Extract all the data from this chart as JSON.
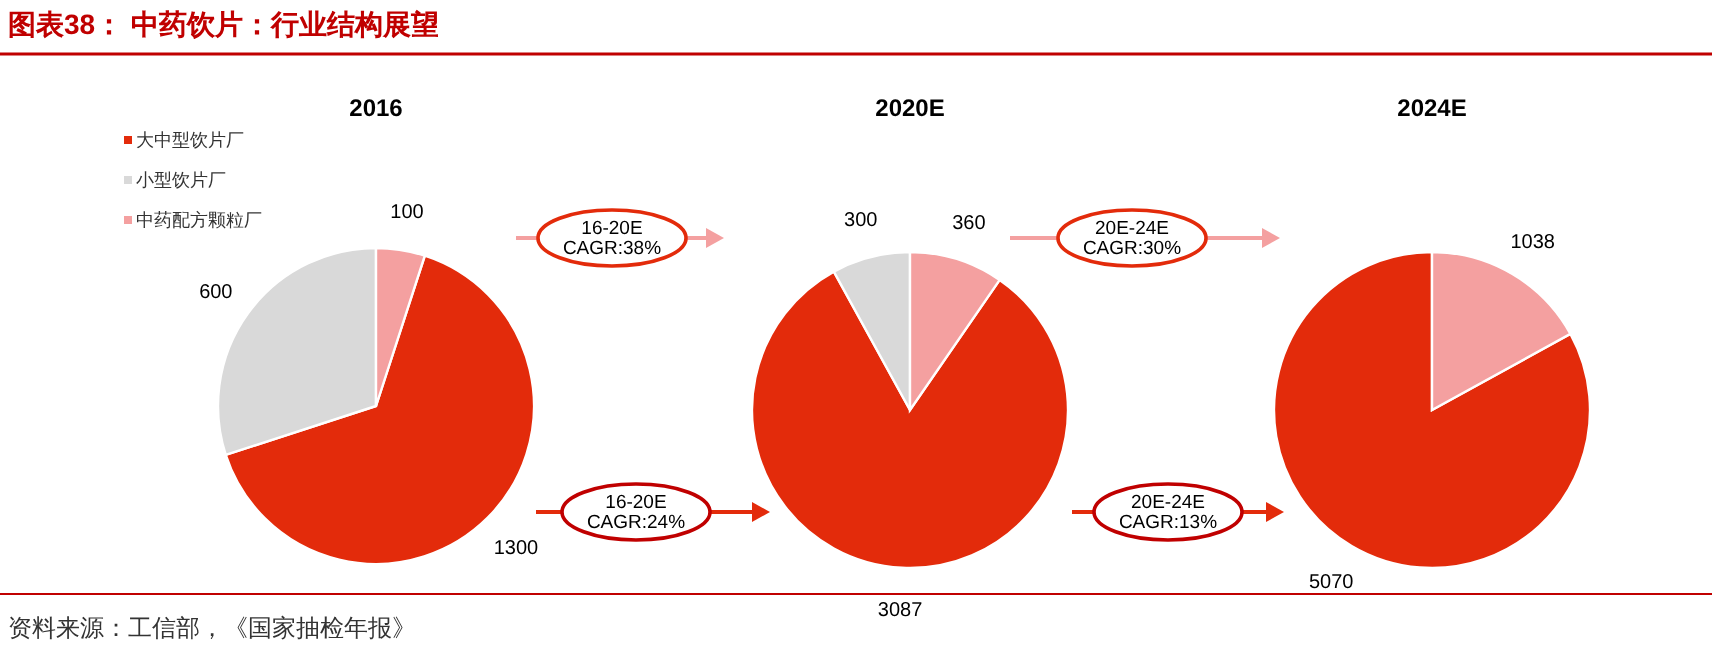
{
  "chart_data": [
    {
      "type": "pie",
      "title": "2016",
      "categories": [
        "大中型饮片厂",
        "小型饮片厂",
        "中药配方颗粒厂"
      ],
      "values": [
        1300,
        600,
        100
      ],
      "colors": [
        "#e32b0b",
        "#d9d9d9",
        "#f4a0a0"
      ],
      "data_labels": true,
      "legend": "top left",
      "annotations": [
        "图表38：  中药饮片：行业结构展望",
        "资料来源：工信部，《国家抽检年报》"
      ]
    },
    {
      "type": "pie",
      "title": "2020E",
      "categories": [
        null,
        null,
        null
      ],
      "values": [
        3087,
        300,
        360
      ],
      "colors": [
        "#e32b0b",
        "#d9d9d9",
        "#f4a0a0"
      ],
      "data_labels": true,
      "annotations": [
        "16-20E\nCAGR:38%",
        "16-20E\nCAGR:24%"
      ]
    },
    {
      "type": "pie",
      "title": "2024E",
      "categories": [
        null,
        null,
        null
      ],
      "values": [
        5070,
        null,
        1038
      ],
      "colors": [
        "#e32b0b",
        "#d9d9d9",
        "#f4a0a0"
      ],
      "data_labels": true,
      "annotations": [
        "20E-24E\nCAGR:30%",
        "20E-24E\nCAGR:13%"
      ]
    }
  ]
}
